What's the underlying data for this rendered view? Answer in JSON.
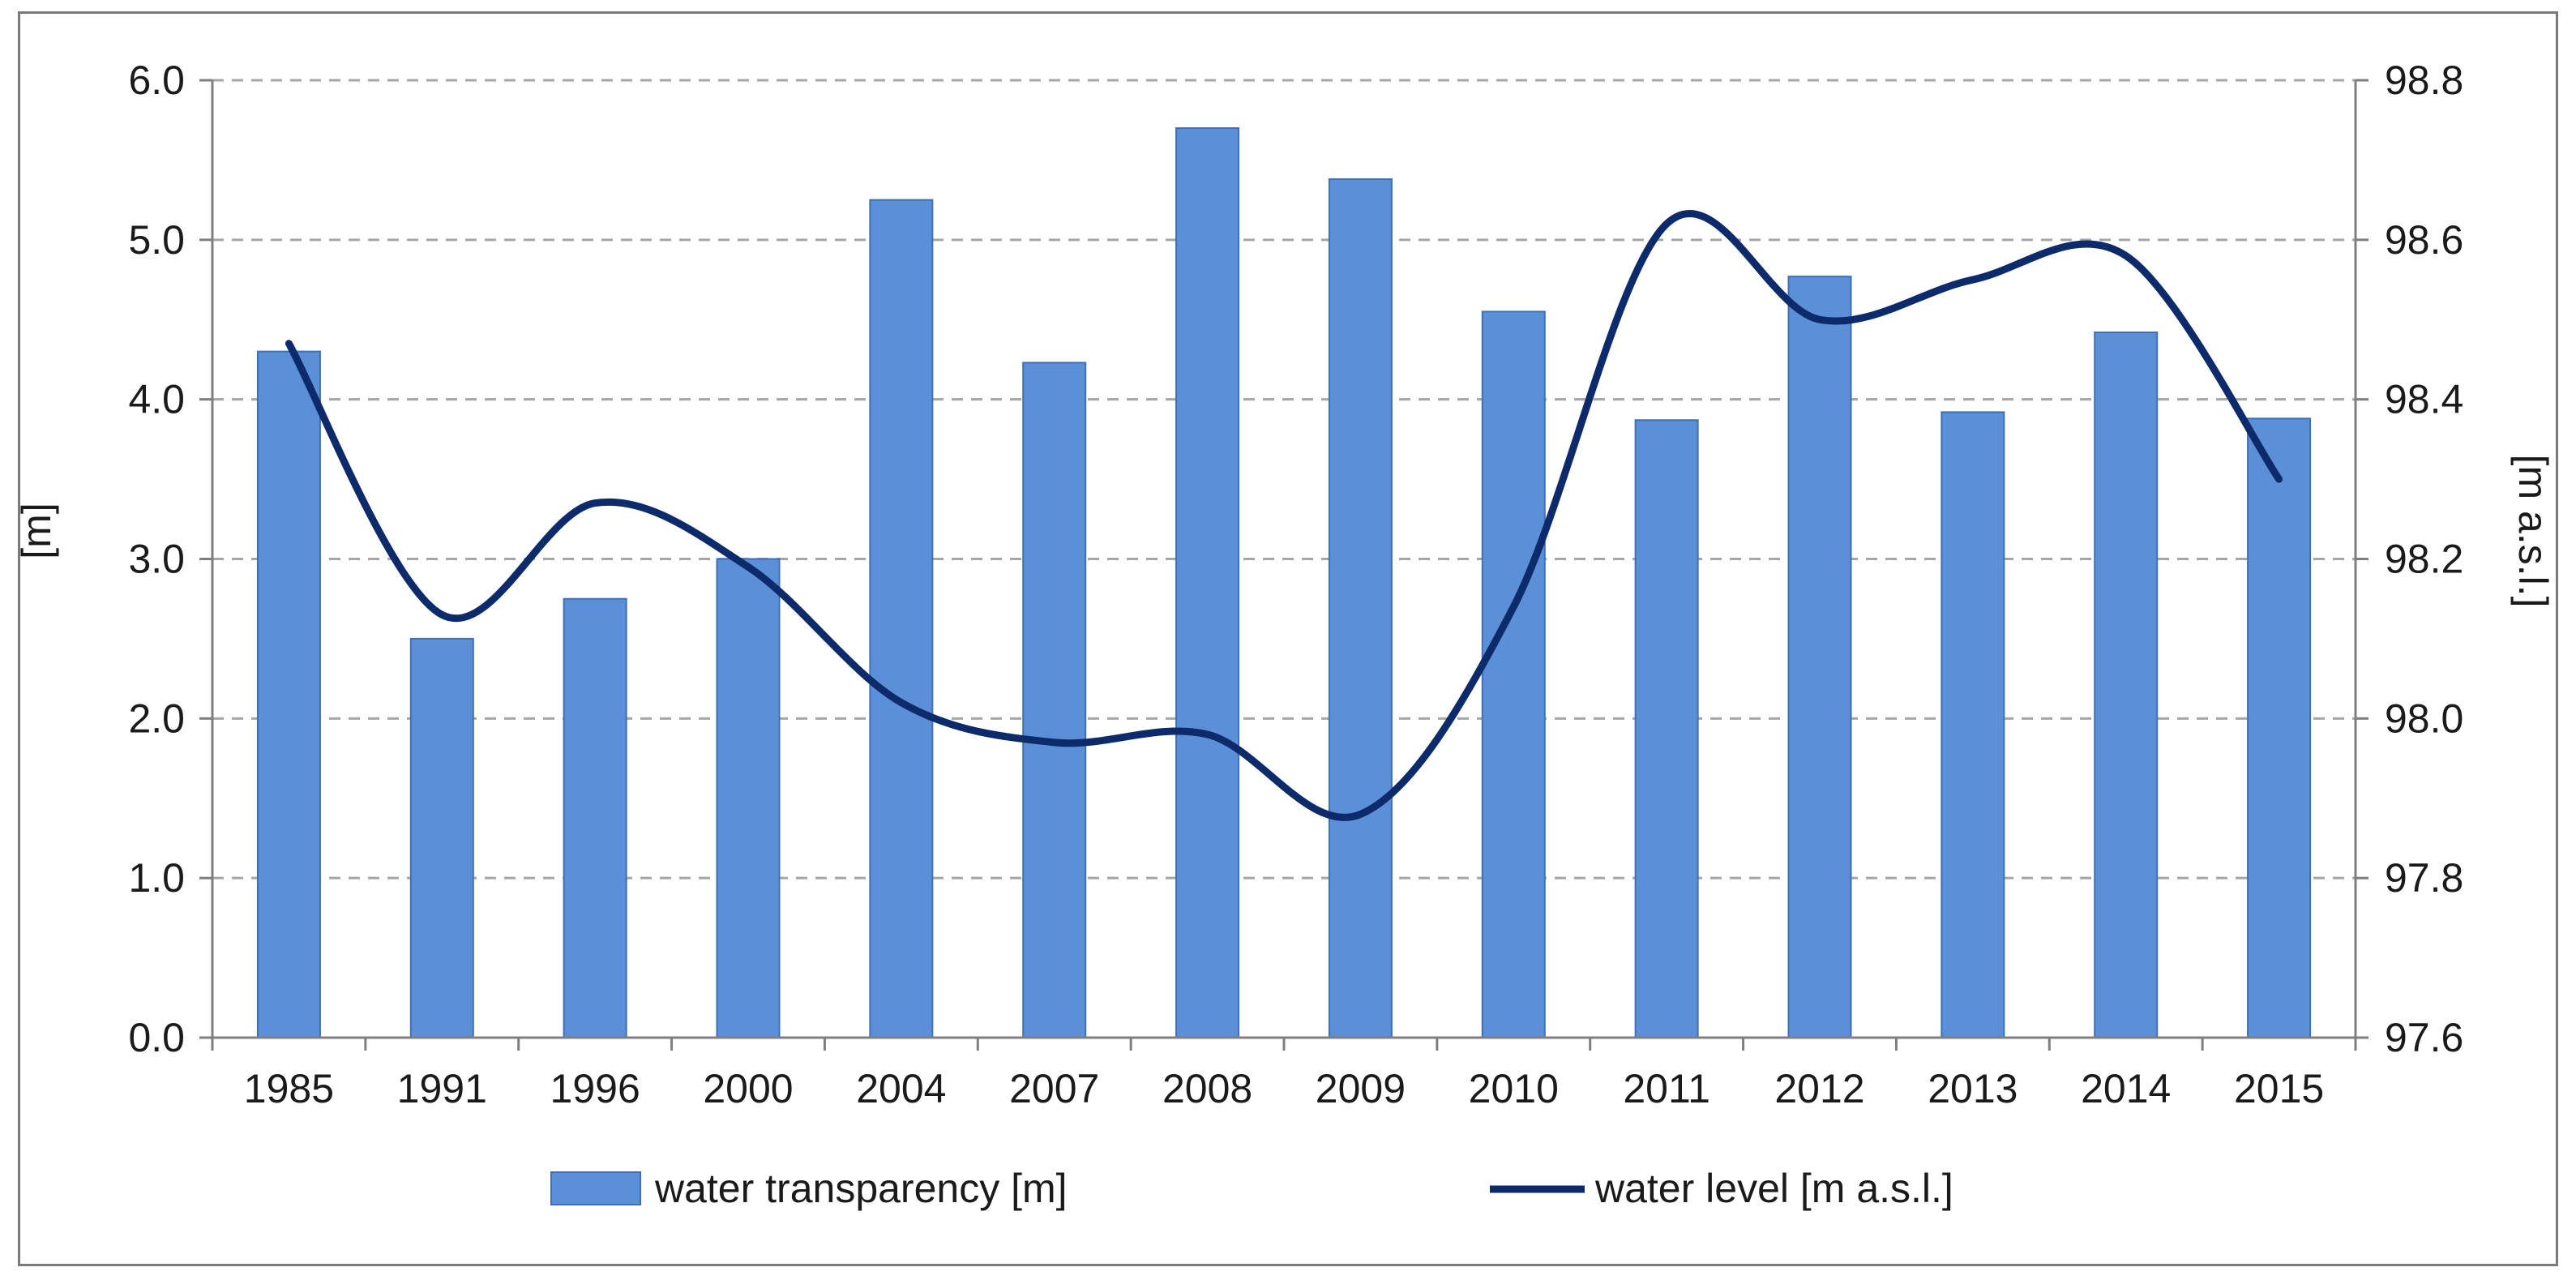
{
  "chart_data": {
    "type": "bar",
    "title": "",
    "categories": [
      "1985",
      "1991",
      "1996",
      "2000",
      "2004",
      "2007",
      "2008",
      "2009",
      "2010",
      "2011",
      "2012",
      "2013",
      "2014",
      "2015"
    ],
    "series": [
      {
        "name": "water transparency [m]",
        "kind": "bar",
        "axis": "left",
        "color": "#5b8fd8",
        "values": [
          4.3,
          2.5,
          2.75,
          3.0,
          5.25,
          4.23,
          5.7,
          5.38,
          4.55,
          3.87,
          4.77,
          3.92,
          4.42,
          3.88
        ]
      },
      {
        "name": "water level [m a.s.l.]",
        "kind": "line",
        "axis": "right",
        "color": "#0d2a6b",
        "values": [
          98.47,
          98.13,
          98.27,
          98.19,
          98.02,
          97.97,
          97.98,
          97.88,
          98.14,
          98.62,
          98.5,
          98.55,
          98.58,
          98.3
        ]
      }
    ],
    "ylabel": "[m]",
    "ylabel_right": "[m a.s.l.]",
    "ylim": [
      0,
      6
    ],
    "yticks": [
      "0.0",
      "1.0",
      "2.0",
      "3.0",
      "4.0",
      "5.0",
      "6.0"
    ],
    "ylim_right": [
      97.6,
      98.8
    ],
    "yticks_right": [
      "97.6",
      "97.8",
      "98.0",
      "98.2",
      "98.4",
      "98.6",
      "98.8"
    ],
    "grid": true,
    "legend_position": "bottom"
  },
  "colors": {
    "bar_fill": "#5b8fd8",
    "bar_edge": "#3f6fb4",
    "line": "#0d2a6b",
    "grid": "#a6a6a6",
    "axis": "#7f7f7f",
    "frame": "#7a7a7a"
  }
}
